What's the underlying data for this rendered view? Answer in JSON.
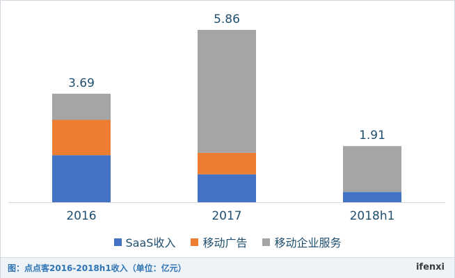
{
  "chart_data": {
    "type": "bar",
    "stacked": true,
    "categories": [
      "2016",
      "2017",
      "2018h1"
    ],
    "totals": [
      "3.69",
      "5.86",
      "1.91"
    ],
    "series": [
      {
        "name": "SaaS收入",
        "color": "#4472c4",
        "values": [
          1.6,
          0.95,
          0.35
        ]
      },
      {
        "name": "移动广告",
        "color": "#ed7d31",
        "values": [
          1.2,
          0.73,
          0.0
        ]
      },
      {
        "name": "移动企业服务",
        "color": "#a5a5a5",
        "values": [
          0.89,
          4.18,
          1.56
        ]
      }
    ],
    "ylim": [
      0,
      5.86
    ],
    "legend_position": "bottom",
    "grid": false
  },
  "caption": "图：点点客2016-2018h1收入（单位：亿元）",
  "brand": "ifenxi"
}
